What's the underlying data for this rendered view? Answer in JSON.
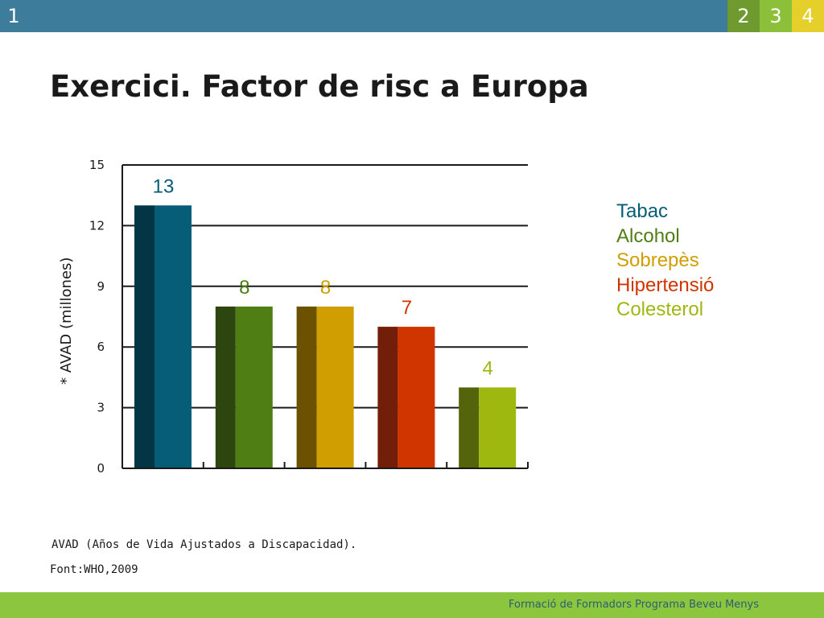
{
  "header": {
    "current_slide": "1",
    "slide_tabs": [
      "2",
      "3",
      "4"
    ]
  },
  "title": "Exercici. Factor de risc a Europa",
  "chart_data": {
    "type": "bar",
    "categories": [
      "Tabac",
      "Alcohol",
      "Sobrepès",
      "Hipertensió",
      "Colesterol"
    ],
    "values": [
      13,
      8,
      8,
      7,
      4
    ],
    "value_labels": [
      "13",
      "8",
      "8",
      "7",
      "4"
    ],
    "colors": [
      "#055d78",
      "#4e7e14",
      "#d09e00",
      "#d03500",
      "#9fb80f"
    ],
    "shade_colors": [
      "#033545",
      "#2d4610",
      "#6b5100",
      "#731e08",
      "#54640a"
    ],
    "ylabel": "* AVAD (millones)",
    "yticks": [
      "0",
      "3",
      "6",
      "9",
      "12",
      "15"
    ],
    "ylim": [
      0,
      15
    ],
    "grid": true,
    "legend_position": "right"
  },
  "note": "AVAD (Años de Vida Ajustados a Discapacidad).",
  "source": "Font:WHO,2009",
  "footer": "Formació de Formadors Programa Beveu Menys"
}
